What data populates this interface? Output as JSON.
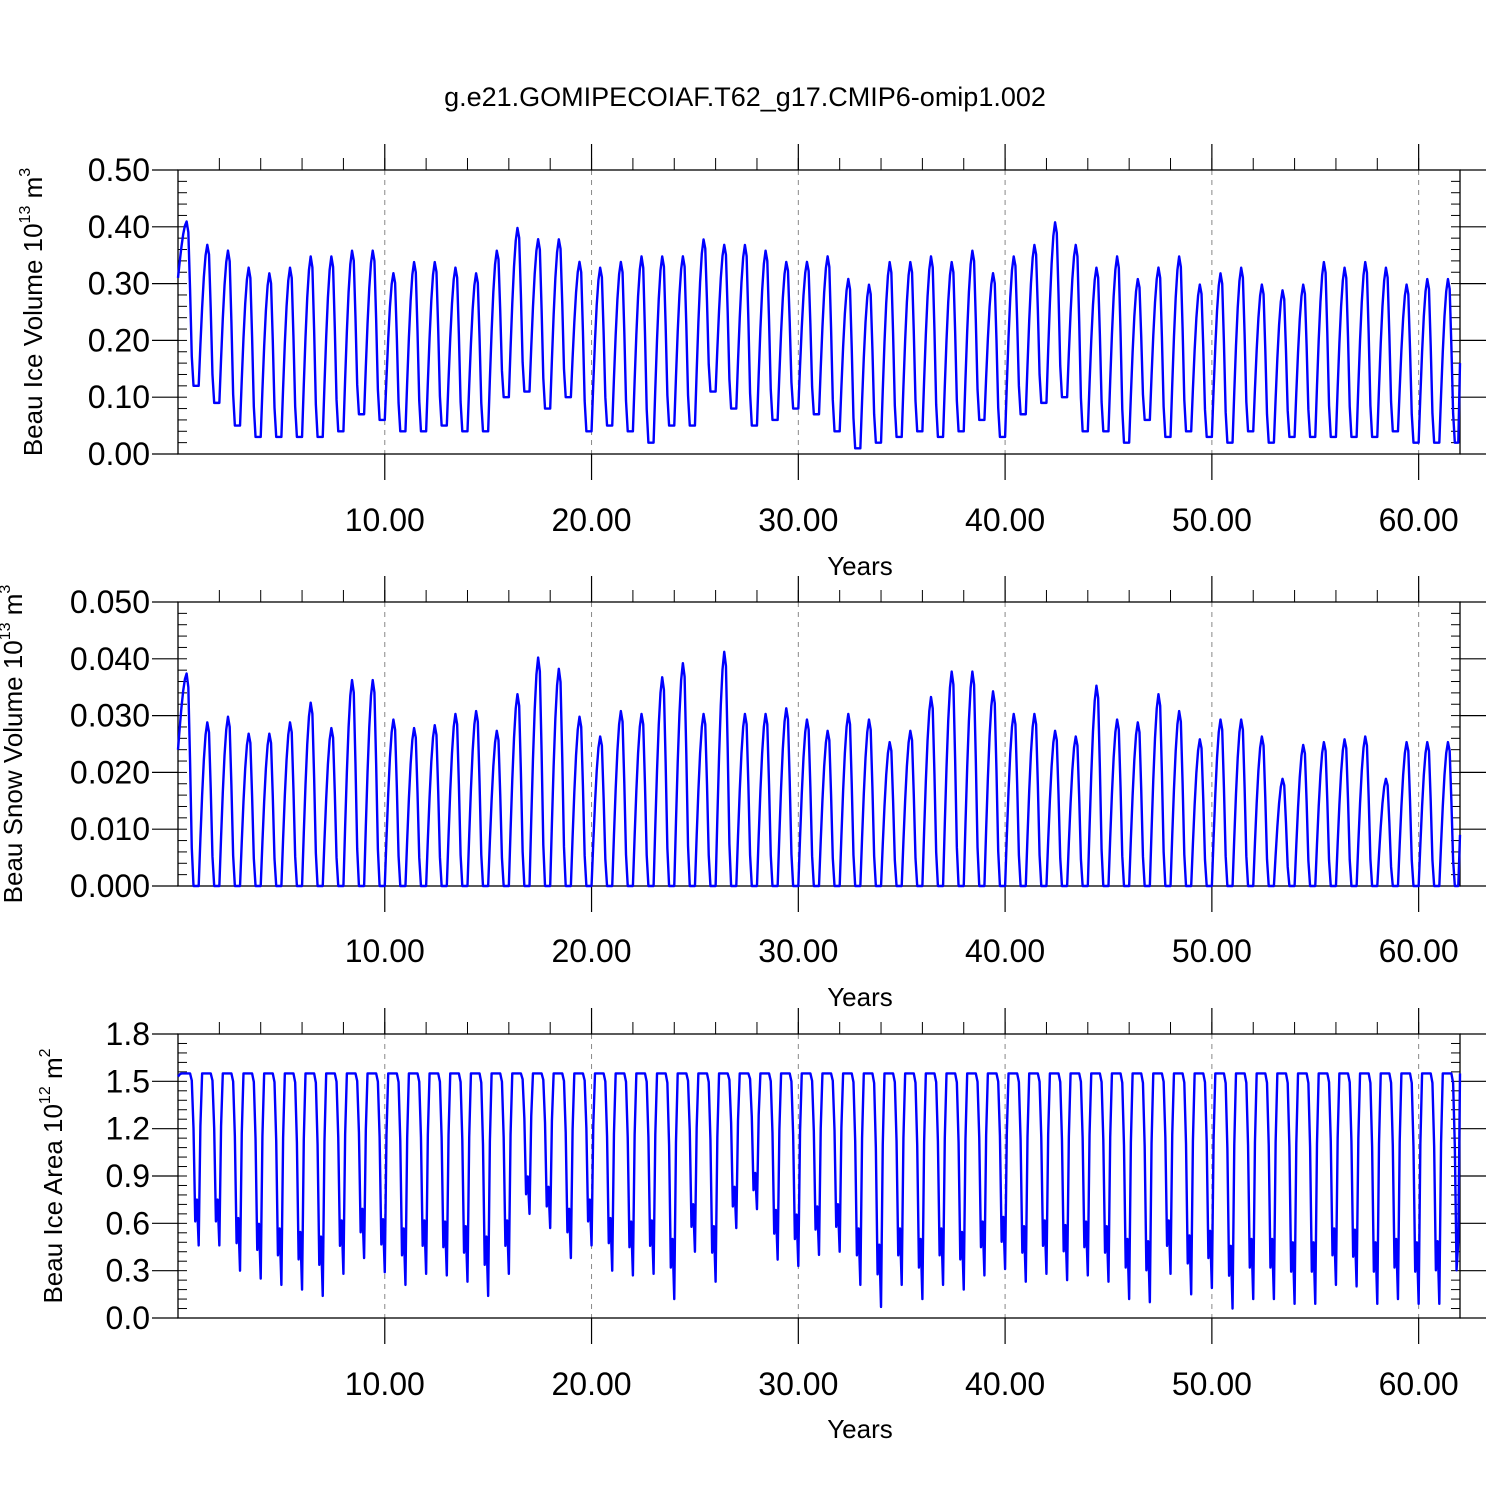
{
  "title": "g.e21.GOMIPECOIAF.T62_g17.CMIP6-omip1.002",
  "colors": {
    "series": "#0000ff",
    "axis": "#000000",
    "grid": "#888888"
  },
  "chart_data": [
    {
      "type": "line",
      "name": "ice-volume",
      "ylabel_main": "Beau Ice Volume 10",
      "ylabel_exp": "13",
      "ylabel_unit": " m",
      "ylabel_unit_exp": "3",
      "xlabel": "Years",
      "xlim": [
        0,
        62
      ],
      "ylim": [
        0,
        0.5
      ],
      "xticks": [
        10,
        20,
        30,
        40,
        50,
        60
      ],
      "xtick_labels": [
        "10.00",
        "20.00",
        "30.00",
        "40.00",
        "50.00",
        "60.00"
      ],
      "yticks": [
        0,
        0.1,
        0.2,
        0.3,
        0.4,
        0.5
      ],
      "ytick_labels": [
        "0.00",
        "0.10",
        "0.20",
        "0.30",
        "0.40",
        "0.50"
      ],
      "grid": "dashed vertical at x major ticks",
      "samples_per_year": 12,
      "start": 0.31,
      "end": 0.16,
      "annual_max": [
        0.41,
        0.37,
        0.36,
        0.33,
        0.32,
        0.33,
        0.35,
        0.35,
        0.36,
        0.36,
        0.32,
        0.34,
        0.34,
        0.33,
        0.32,
        0.36,
        0.4,
        0.38,
        0.38,
        0.34,
        0.33,
        0.34,
        0.35,
        0.35,
        0.35,
        0.38,
        0.37,
        0.37,
        0.36,
        0.34,
        0.34,
        0.35,
        0.31,
        0.3,
        0.34,
        0.34,
        0.35,
        0.34,
        0.36,
        0.32,
        0.35,
        0.37,
        0.41,
        0.37,
        0.33,
        0.35,
        0.31,
        0.33,
        0.35,
        0.3,
        0.32,
        0.33,
        0.3,
        0.29,
        0.3,
        0.34,
        0.33,
        0.34,
        0.33,
        0.3,
        0.31
      ],
      "annual_min": [
        0.12,
        0.09,
        0.05,
        0.03,
        0.03,
        0.03,
        0.03,
        0.04,
        0.07,
        0.06,
        0.04,
        0.04,
        0.05,
        0.04,
        0.04,
        0.1,
        0.11,
        0.08,
        0.1,
        0.04,
        0.05,
        0.04,
        0.02,
        0.05,
        0.05,
        0.11,
        0.08,
        0.05,
        0.06,
        0.08,
        0.07,
        0.04,
        0.01,
        0.02,
        0.03,
        0.04,
        0.03,
        0.04,
        0.06,
        0.03,
        0.07,
        0.09,
        0.1,
        0.04,
        0.04,
        0.02,
        0.06,
        0.03,
        0.04,
        0.03,
        0.02,
        0.04,
        0.02,
        0.03,
        0.03,
        0.03,
        0.03,
        0.03,
        0.04,
        0.02,
        0.02
      ]
    },
    {
      "type": "line",
      "name": "snow-volume",
      "ylabel_main": "Beau Snow Volume 10",
      "ylabel_exp": "13",
      "ylabel_unit": " m",
      "ylabel_unit_exp": "3",
      "xlabel": "Years",
      "xlim": [
        0,
        62
      ],
      "ylim": [
        0,
        0.05
      ],
      "xticks": [
        10,
        20,
        30,
        40,
        50,
        60
      ],
      "xtick_labels": [
        "10.00",
        "20.00",
        "30.00",
        "40.00",
        "50.00",
        "60.00"
      ],
      "yticks": [
        0,
        0.01,
        0.02,
        0.03,
        0.04,
        0.05
      ],
      "ytick_labels": [
        "0.000",
        "0.010",
        "0.020",
        "0.030",
        "0.040",
        "0.050"
      ],
      "grid": "dashed vertical at x major ticks",
      "samples_per_year": 12,
      "start": 0.024,
      "end": 0.009,
      "annual_max": [
        0.0375,
        0.029,
        0.03,
        0.027,
        0.027,
        0.029,
        0.0325,
        0.028,
        0.0365,
        0.0365,
        0.0295,
        0.028,
        0.0285,
        0.0305,
        0.031,
        0.0275,
        0.034,
        0.0405,
        0.0385,
        0.03,
        0.0265,
        0.031,
        0.0305,
        0.037,
        0.0395,
        0.0305,
        0.0415,
        0.0305,
        0.0305,
        0.0315,
        0.0295,
        0.0275,
        0.0305,
        0.0295,
        0.0255,
        0.0275,
        0.0335,
        0.038,
        0.038,
        0.0345,
        0.0305,
        0.0305,
        0.0275,
        0.0265,
        0.0355,
        0.0295,
        0.029,
        0.034,
        0.031,
        0.026,
        0.0295,
        0.0295,
        0.0265,
        0.019,
        0.025,
        0.0255,
        0.026,
        0.0265,
        0.019,
        0.0255,
        0.0255
      ],
      "annual_min": [
        0,
        0,
        0,
        0,
        0,
        0,
        0,
        0,
        0,
        0,
        0,
        0,
        0,
        0,
        0,
        0,
        0,
        0,
        0,
        0,
        0,
        0,
        0,
        0,
        0,
        0,
        0,
        0,
        0,
        0,
        0,
        0,
        0,
        0,
        0,
        0,
        0,
        0,
        0,
        0,
        0,
        0,
        0,
        0,
        0,
        0,
        0,
        0,
        0,
        0,
        0,
        0,
        0,
        0,
        0,
        0,
        0,
        0,
        0,
        0,
        0
      ]
    },
    {
      "type": "line",
      "name": "ice-area",
      "ylabel_main": "Beau Ice Area 10",
      "ylabel_exp": "12",
      "ylabel_unit": " m",
      "ylabel_unit_exp": "2",
      "xlabel": "Years",
      "xlim": [
        0,
        62
      ],
      "ylim": [
        0,
        1.8
      ],
      "xticks": [
        10,
        20,
        30,
        40,
        50,
        60
      ],
      "xtick_labels": [
        "10.00",
        "20.00",
        "30.00",
        "40.00",
        "50.00",
        "60.00"
      ],
      "yticks": [
        0,
        0.3,
        0.6,
        0.9,
        1.2,
        1.5,
        1.8
      ],
      "ytick_labels": [
        "0.0",
        "0.3",
        "0.6",
        "0.9",
        "1.2",
        "1.5",
        "1.8"
      ],
      "grid": "dashed vertical at x major ticks",
      "samples_per_year": 12,
      "start": 1.53,
      "end": 1.55,
      "annual_max": [
        1.55,
        1.55,
        1.55,
        1.55,
        1.55,
        1.55,
        1.55,
        1.55,
        1.55,
        1.55,
        1.55,
        1.55,
        1.55,
        1.55,
        1.55,
        1.55,
        1.55,
        1.55,
        1.55,
        1.55,
        1.55,
        1.55,
        1.55,
        1.55,
        1.55,
        1.55,
        1.55,
        1.55,
        1.55,
        1.55,
        1.55,
        1.55,
        1.55,
        1.55,
        1.55,
        1.55,
        1.55,
        1.55,
        1.55,
        1.55,
        1.55,
        1.55,
        1.55,
        1.55,
        1.55,
        1.55,
        1.55,
        1.55,
        1.55,
        1.55,
        1.55,
        1.55,
        1.55,
        1.55,
        1.55,
        1.55,
        1.55,
        1.55,
        1.55,
        1.55,
        1.55
      ],
      "annual_min": [
        0.46,
        0.46,
        0.3,
        0.25,
        0.21,
        0.18,
        0.14,
        0.28,
        0.38,
        0.29,
        0.21,
        0.28,
        0.27,
        0.23,
        0.14,
        0.28,
        0.66,
        0.57,
        0.38,
        0.46,
        0.3,
        0.27,
        0.28,
        0.12,
        0.42,
        0.23,
        0.57,
        0.69,
        0.37,
        0.33,
        0.4,
        0.42,
        0.21,
        0.07,
        0.21,
        0.12,
        0.21,
        0.18,
        0.27,
        0.31,
        0.23,
        0.28,
        0.24,
        0.27,
        0.23,
        0.12,
        0.1,
        0.28,
        0.15,
        0.19,
        0.06,
        0.12,
        0.12,
        0.09,
        0.09,
        0.21,
        0.2,
        0.09,
        0.12,
        0.09,
        0.1
      ]
    }
  ]
}
